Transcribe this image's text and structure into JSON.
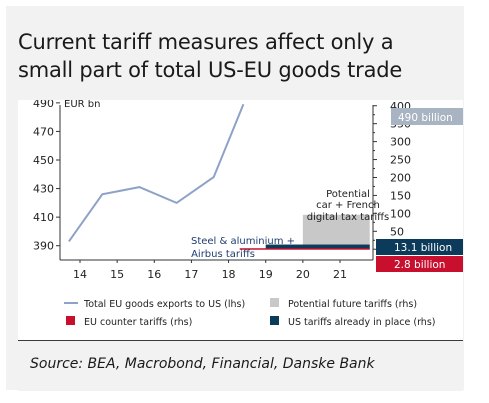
{
  "title_line1": "Current tariff measures affect only  a",
  "title_line2": "small part of  total US-EU goods trade",
  "source": "Source: BEA, Macrobond, Financial, Danske Bank",
  "colors": {
    "line": "#8ea2c8",
    "potential": "#c8c8c8",
    "eu_counter": "#c8102e",
    "us_tariffs": "#0b3a5a",
    "label_gray": "#a9b4c2",
    "annotation_navy": "#1f3d6e"
  },
  "chart_data": {
    "type": "line",
    "title": "Current tariff measures affect only  a small part of  total US-EU goods trade",
    "x_ticks": [
      "14",
      "15",
      "16",
      "17",
      "18",
      "19",
      "20",
      "21"
    ],
    "ylabel_left": "EUR bn",
    "y_left_ticks": [
      390,
      410,
      430,
      450,
      470,
      490
    ],
    "y_left_range": [
      380,
      492
    ],
    "y_right_ticks": [
      0,
      50,
      100,
      150,
      200,
      250,
      300,
      350,
      400
    ],
    "y_right_range": [
      -30,
      416
    ],
    "series": [
      {
        "name": "Total EU goods exports to US (lhs)",
        "axis": "left",
        "x": [
          13.7,
          14.6,
          15.6,
          16.6,
          17.6,
          18.4
        ],
        "y": [
          393,
          426,
          431,
          420,
          438,
          489
        ]
      }
    ],
    "bars": [
      {
        "name": "Potential future tariffs (rhs)",
        "axis": "right",
        "x_start": 20.0,
        "x_end": 21.8,
        "value": 96
      },
      {
        "name": "US tariffs already in place (rhs)",
        "axis": "right",
        "x_start": 19.0,
        "x_end": 21.8,
        "value": 13.1
      },
      {
        "name": "EU counter tariffs (rhs)",
        "axis": "right",
        "x_start": 18.3,
        "x_end": 21.8,
        "value": 2.8
      }
    ],
    "value_labels": {
      "total": "490 billion",
      "us": "13.1 billion",
      "eu": "2.8 billion"
    },
    "annotations": {
      "potential": [
        "Potential",
        "car + French",
        "digital tax tariffs"
      ],
      "steel": [
        "Steel & aluminium +",
        "Airbus tariffs"
      ]
    },
    "legend": [
      {
        "label": "Total EU goods exports to US (lhs)",
        "kind": "line",
        "color": "#8ea2c8"
      },
      {
        "label": "Potential future tariffs (rhs)",
        "kind": "box",
        "color": "#c8c8c8"
      },
      {
        "label": "EU counter tariffs (rhs)",
        "kind": "box",
        "color": "#c8102e"
      },
      {
        "label": "US tariffs already in place (rhs)",
        "kind": "box",
        "color": "#0b3a5a"
      }
    ],
    "legend_position": "bottom",
    "grid": false
  }
}
